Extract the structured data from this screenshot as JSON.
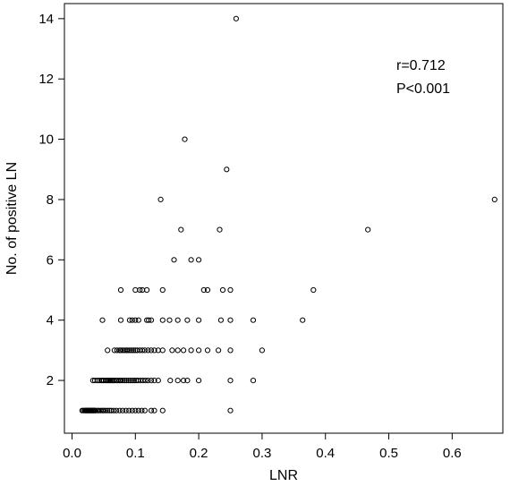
{
  "chart_data": {
    "type": "scatter",
    "title": "",
    "xlabel": "LNR",
    "ylabel": "No. of positive LN",
    "xlim": [
      -0.012,
      0.68
    ],
    "ylim": [
      0.25,
      14.5
    ],
    "xticks": [
      0.0,
      0.1,
      0.2,
      0.3,
      0.4,
      0.5,
      0.6
    ],
    "xtick_labels": [
      "0.0",
      "0.1",
      "0.2",
      "0.3",
      "0.4",
      "0.5",
      "0.6"
    ],
    "yticks": [
      2,
      4,
      6,
      8,
      10,
      12,
      14
    ],
    "ytick_labels": [
      "2",
      "4",
      "6",
      "8",
      "10",
      "12",
      "14"
    ],
    "grid": false,
    "marker": "open-circle",
    "annotations": [
      "r=0.712",
      "P<0.001"
    ],
    "annotation_position": "top-right",
    "points": [
      [
        0.016,
        1
      ],
      [
        0.018,
        1
      ],
      [
        0.02,
        1
      ],
      [
        0.021,
        1
      ],
      [
        0.022,
        1
      ],
      [
        0.023,
        1
      ],
      [
        0.024,
        1
      ],
      [
        0.025,
        1
      ],
      [
        0.026,
        1
      ],
      [
        0.027,
        1
      ],
      [
        0.028,
        1
      ],
      [
        0.029,
        1
      ],
      [
        0.03,
        1
      ],
      [
        0.031,
        1
      ],
      [
        0.032,
        1
      ],
      [
        0.033,
        1
      ],
      [
        0.034,
        1
      ],
      [
        0.035,
        1
      ],
      [
        0.036,
        1
      ],
      [
        0.037,
        1
      ],
      [
        0.04,
        1
      ],
      [
        0.042,
        1
      ],
      [
        0.045,
        1
      ],
      [
        0.048,
        1
      ],
      [
        0.05,
        1
      ],
      [
        0.053,
        1
      ],
      [
        0.056,
        1
      ],
      [
        0.059,
        1
      ],
      [
        0.062,
        1
      ],
      [
        0.066,
        1
      ],
      [
        0.07,
        1
      ],
      [
        0.075,
        1
      ],
      [
        0.08,
        1
      ],
      [
        0.085,
        1
      ],
      [
        0.09,
        1
      ],
      [
        0.095,
        1
      ],
      [
        0.1,
        1
      ],
      [
        0.105,
        1
      ],
      [
        0.11,
        1
      ],
      [
        0.115,
        1
      ],
      [
        0.125,
        1
      ],
      [
        0.13,
        1
      ],
      [
        0.143,
        1
      ],
      [
        0.25,
        1
      ],
      [
        0.033,
        2
      ],
      [
        0.036,
        2
      ],
      [
        0.04,
        2
      ],
      [
        0.043,
        2
      ],
      [
        0.046,
        2
      ],
      [
        0.048,
        2
      ],
      [
        0.05,
        2
      ],
      [
        0.053,
        2
      ],
      [
        0.055,
        2
      ],
      [
        0.057,
        2
      ],
      [
        0.059,
        2
      ],
      [
        0.061,
        2
      ],
      [
        0.063,
        2
      ],
      [
        0.065,
        2
      ],
      [
        0.067,
        2
      ],
      [
        0.07,
        2
      ],
      [
        0.072,
        2
      ],
      [
        0.075,
        2
      ],
      [
        0.077,
        2
      ],
      [
        0.08,
        2
      ],
      [
        0.083,
        2
      ],
      [
        0.086,
        2
      ],
      [
        0.089,
        2
      ],
      [
        0.092,
        2
      ],
      [
        0.095,
        2
      ],
      [
        0.098,
        2
      ],
      [
        0.101,
        2
      ],
      [
        0.104,
        2
      ],
      [
        0.108,
        2
      ],
      [
        0.112,
        2
      ],
      [
        0.116,
        2
      ],
      [
        0.12,
        2
      ],
      [
        0.125,
        2
      ],
      [
        0.13,
        2
      ],
      [
        0.136,
        2
      ],
      [
        0.155,
        2
      ],
      [
        0.167,
        2
      ],
      [
        0.176,
        2
      ],
      [
        0.182,
        2
      ],
      [
        0.2,
        2
      ],
      [
        0.25,
        2
      ],
      [
        0.286,
        2
      ],
      [
        0.056,
        3
      ],
      [
        0.067,
        3
      ],
      [
        0.071,
        3
      ],
      [
        0.075,
        3
      ],
      [
        0.077,
        3
      ],
      [
        0.08,
        3
      ],
      [
        0.083,
        3
      ],
      [
        0.086,
        3
      ],
      [
        0.088,
        3
      ],
      [
        0.091,
        3
      ],
      [
        0.094,
        3
      ],
      [
        0.097,
        3
      ],
      [
        0.1,
        3
      ],
      [
        0.103,
        3
      ],
      [
        0.107,
        3
      ],
      [
        0.111,
        3
      ],
      [
        0.115,
        3
      ],
      [
        0.12,
        3
      ],
      [
        0.125,
        3
      ],
      [
        0.13,
        3
      ],
      [
        0.136,
        3
      ],
      [
        0.143,
        3
      ],
      [
        0.158,
        3
      ],
      [
        0.167,
        3
      ],
      [
        0.176,
        3
      ],
      [
        0.188,
        3
      ],
      [
        0.2,
        3
      ],
      [
        0.214,
        3
      ],
      [
        0.231,
        3
      ],
      [
        0.25,
        3
      ],
      [
        0.3,
        3
      ],
      [
        0.048,
        4
      ],
      [
        0.077,
        4
      ],
      [
        0.091,
        4
      ],
      [
        0.095,
        4
      ],
      [
        0.1,
        4
      ],
      [
        0.105,
        4
      ],
      [
        0.118,
        4
      ],
      [
        0.121,
        4
      ],
      [
        0.125,
        4
      ],
      [
        0.143,
        4
      ],
      [
        0.154,
        4
      ],
      [
        0.167,
        4
      ],
      [
        0.182,
        4
      ],
      [
        0.2,
        4
      ],
      [
        0.235,
        4
      ],
      [
        0.25,
        4
      ],
      [
        0.286,
        4
      ],
      [
        0.364,
        4
      ],
      [
        0.077,
        5
      ],
      [
        0.1,
        5
      ],
      [
        0.107,
        5
      ],
      [
        0.111,
        5
      ],
      [
        0.118,
        5
      ],
      [
        0.143,
        5
      ],
      [
        0.208,
        5
      ],
      [
        0.214,
        5
      ],
      [
        0.238,
        5
      ],
      [
        0.25,
        5
      ],
      [
        0.381,
        5
      ],
      [
        0.161,
        6
      ],
      [
        0.188,
        6
      ],
      [
        0.2,
        6
      ],
      [
        0.172,
        7
      ],
      [
        0.233,
        7
      ],
      [
        0.467,
        7
      ],
      [
        0.14,
        8
      ],
      [
        0.667,
        8
      ],
      [
        0.244,
        9
      ],
      [
        0.178,
        10
      ],
      [
        0.259,
        14
      ]
    ]
  }
}
